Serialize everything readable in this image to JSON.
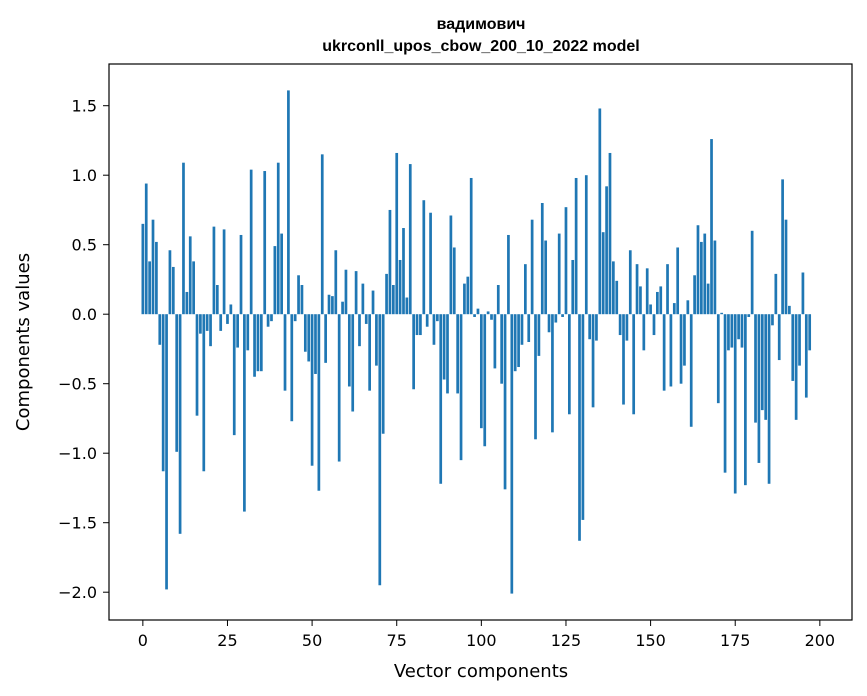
{
  "chart_data": {
    "type": "bar",
    "title": "вадимович",
    "subtitle": "ukrconll_upos_cbow_200_10_2022 model",
    "xlabel": "Vector components",
    "ylabel": "Components values",
    "xlim": [
      -10,
      209.5
    ],
    "ylim": [
      -2.2,
      1.8
    ],
    "xticks": [
      0,
      25,
      50,
      75,
      100,
      125,
      150,
      175,
      200
    ],
    "yticks": [
      1.5,
      1.0,
      0.5,
      0.0,
      -0.5,
      -1.0,
      -1.5,
      -2.0
    ],
    "ytick_labels": [
      "1.5",
      "1.0",
      "0.5",
      "0.0",
      "−0.5",
      "−1.0",
      "−1.5",
      "−2.0"
    ],
    "bar_color": "#1f77b4",
    "grid": false,
    "legend": "none",
    "values": [
      0.65,
      0.94,
      0.38,
      0.68,
      0.52,
      -0.22,
      -1.13,
      -1.98,
      0.46,
      0.34,
      -0.99,
      -1.58,
      1.09,
      0.16,
      0.56,
      0.38,
      -0.73,
      -0.14,
      -1.13,
      -0.12,
      -0.23,
      0.63,
      0.21,
      -0.12,
      0.61,
      -0.07,
      0.07,
      -0.87,
      -0.24,
      0.57,
      -1.42,
      -0.26,
      1.04,
      -0.45,
      -0.41,
      -0.41,
      1.03,
      -0.09,
      -0.05,
      0.49,
      1.09,
      0.58,
      -0.55,
      1.61,
      -0.77,
      -0.05,
      0.28,
      0.21,
      -0.27,
      -0.34,
      -1.09,
      -0.43,
      -1.27,
      1.15,
      -0.35,
      0.14,
      0.13,
      0.46,
      -1.06,
      0.09,
      0.32,
      -0.52,
      -0.7,
      0.31,
      -0.23,
      0.22,
      -0.07,
      -0.55,
      0.17,
      -0.37,
      -1.95,
      -0.86,
      0.29,
      0.75,
      0.21,
      1.16,
      0.39,
      0.62,
      0.12,
      1.08,
      -0.54,
      -0.15,
      -0.15,
      0.82,
      -0.09,
      0.73,
      -0.22,
      -0.05,
      -1.22,
      -0.47,
      -0.57,
      0.71,
      0.48,
      -0.57,
      -1.05,
      0.22,
      0.27,
      0.98,
      -0.02,
      0.04,
      -0.82,
      -0.95,
      0.02,
      -0.04,
      -0.39,
      0.21,
      -0.5,
      -1.26,
      0.57,
      -2.01,
      -0.41,
      -0.38,
      -0.22,
      0.36,
      -0.2,
      0.68,
      -0.9,
      -0.3,
      0.8,
      0.53,
      -0.13,
      -0.85,
      -0.06,
      0.58,
      -0.02,
      0.77,
      -0.72,
      0.39,
      0.98,
      -1.63,
      -1.48,
      1.0,
      -0.18,
      -0.67,
      -0.19,
      1.48,
      0.59,
      0.92,
      1.16,
      0.38,
      0.24,
      -0.15,
      -0.65,
      -0.19,
      0.46,
      -0.72,
      0.36,
      0.2,
      -0.26,
      0.33,
      0.07,
      -0.15,
      0.16,
      0.2,
      -0.55,
      0.36,
      -0.52,
      0.08,
      0.48,
      -0.5,
      -0.37,
      0.1,
      -0.81,
      0.28,
      0.64,
      0.52,
      0.58,
      0.22,
      1.26,
      0.53,
      -0.64,
      0.01,
      -1.14,
      -0.26,
      -0.24,
      -1.29,
      -0.18,
      -0.24,
      -1.23,
      -0.02,
      0.6,
      -0.78,
      -1.07,
      -0.69,
      -0.76,
      -1.22,
      -0.08,
      0.29,
      -0.33,
      0.97,
      0.68,
      0.06,
      -0.48,
      -0.76,
      -0.37,
      0.3,
      -0.6,
      -0.26
    ]
  }
}
